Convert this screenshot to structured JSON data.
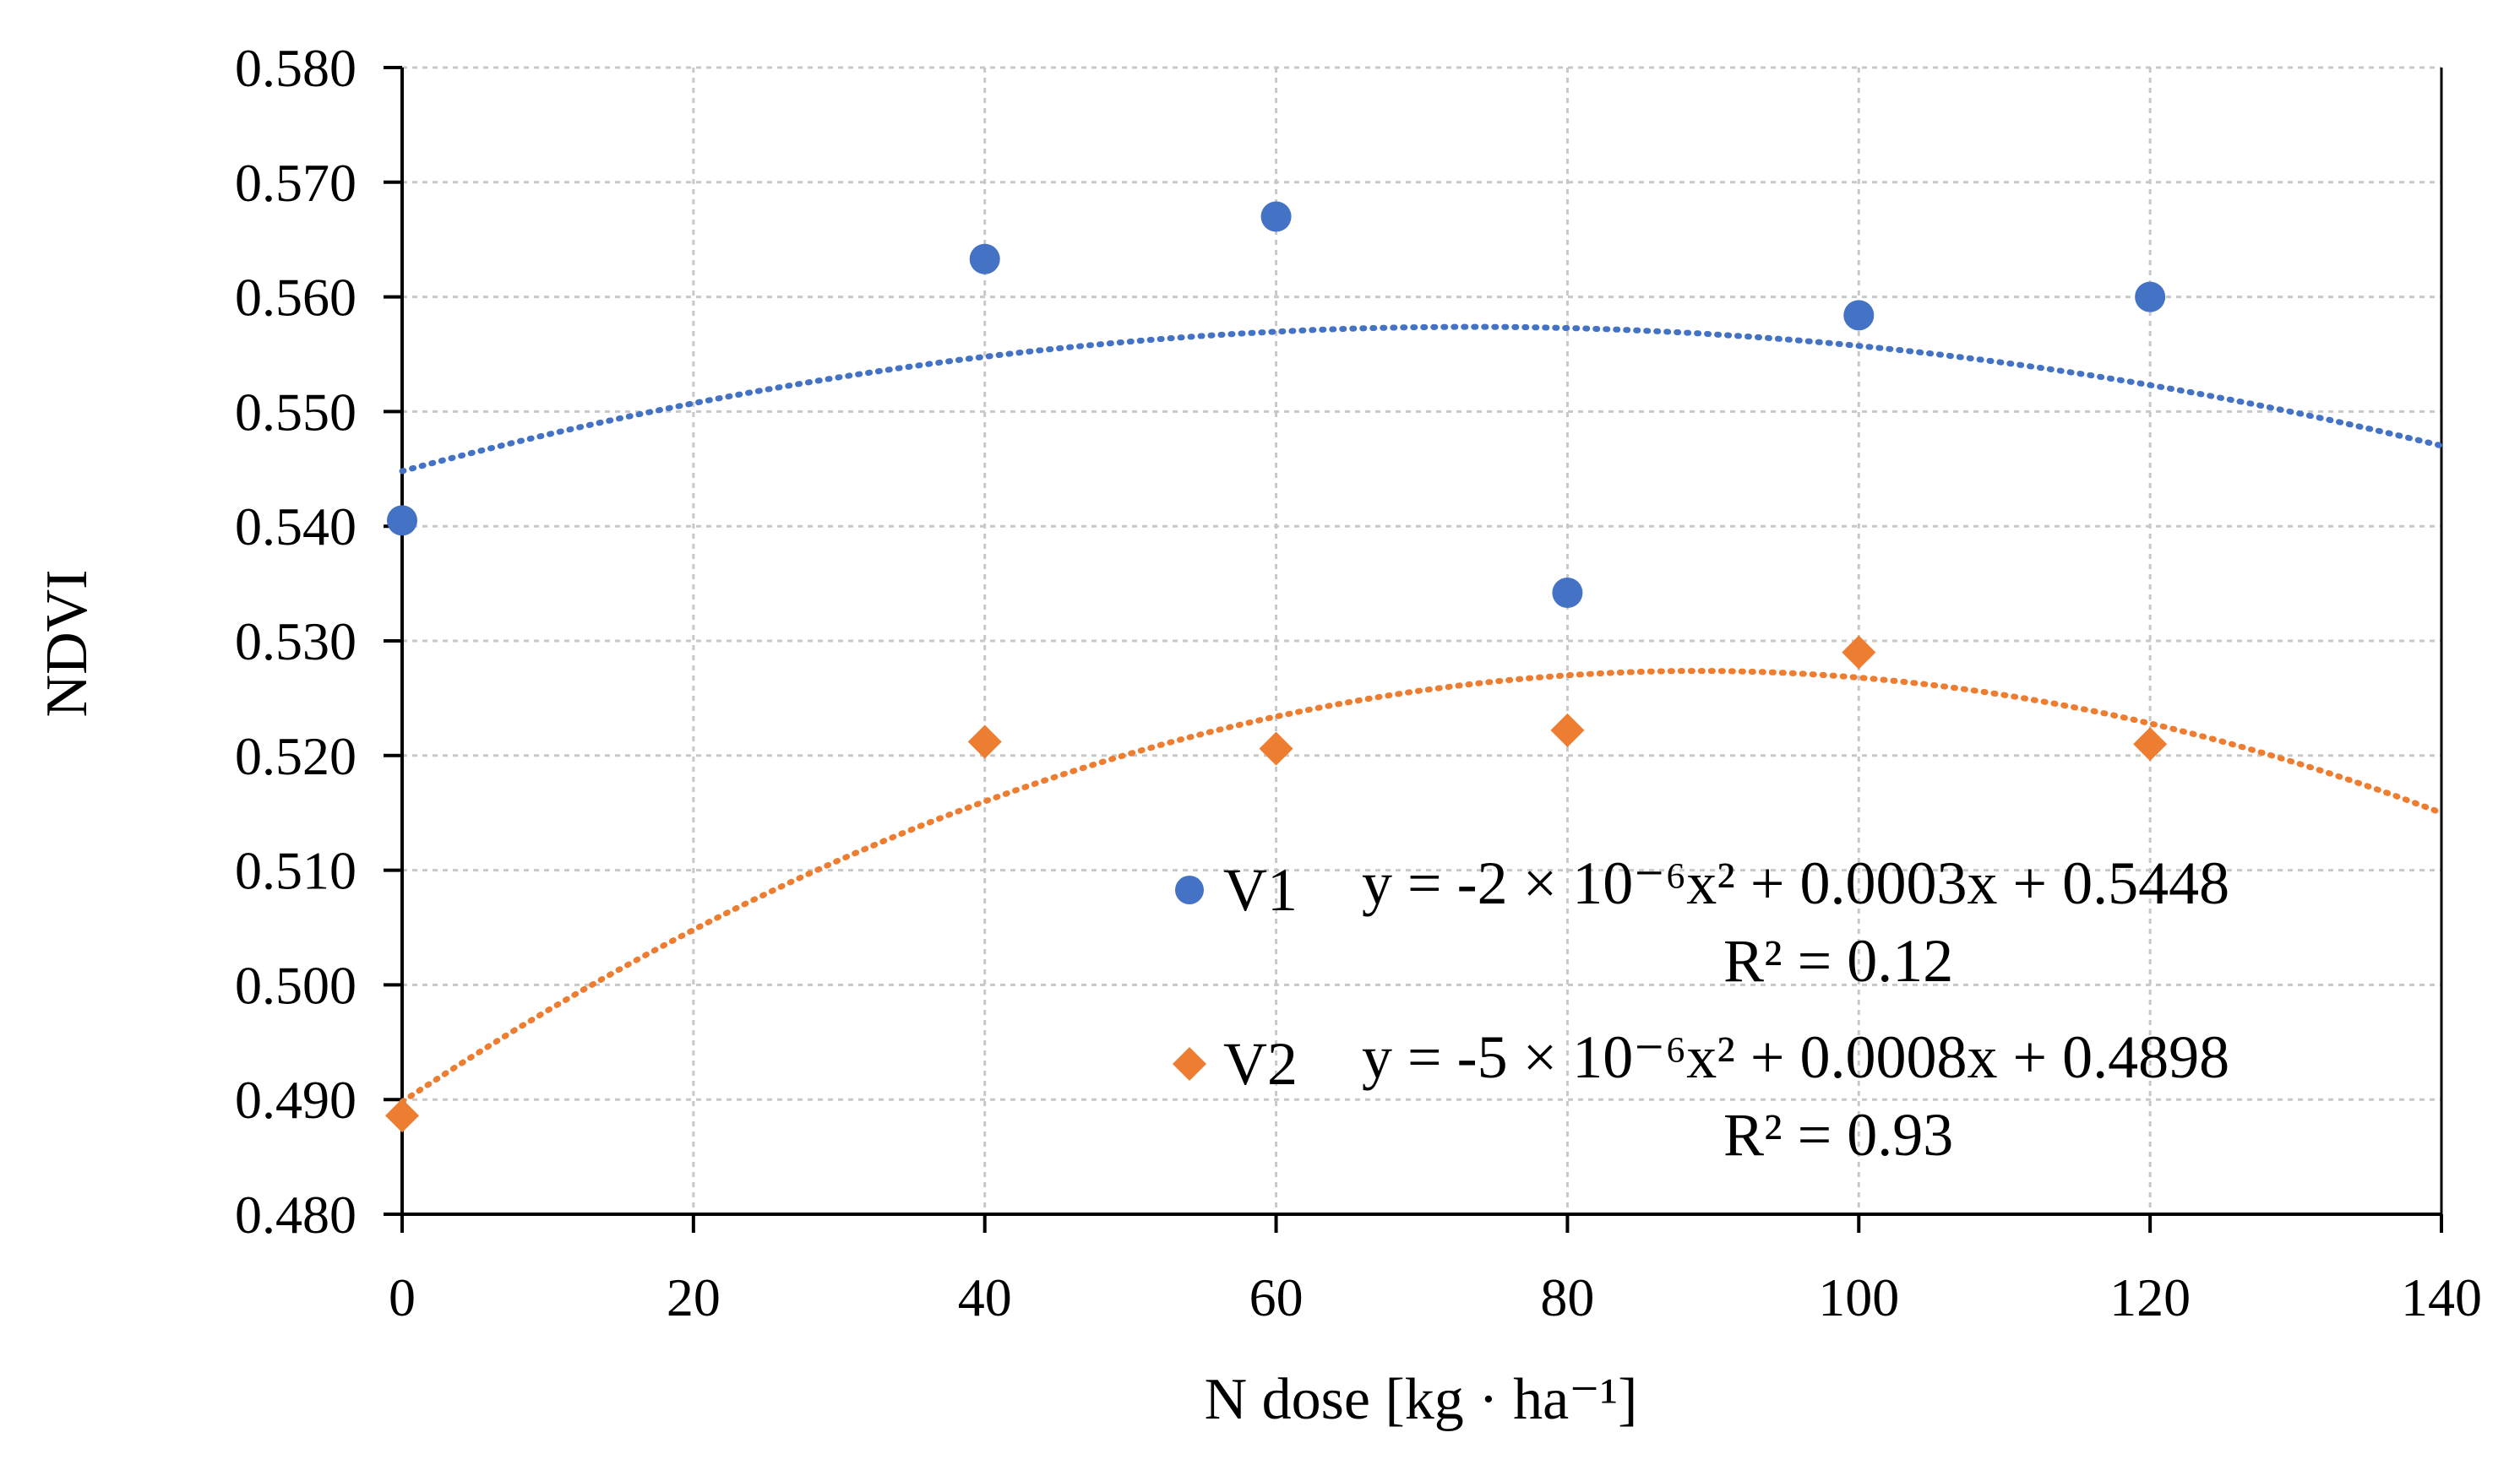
{
  "chart_data": {
    "type": "scatter",
    "title": "",
    "xlabel": "N dose [kg · ha⁻¹]",
    "ylabel": "NDVI",
    "xlim": [
      0,
      140
    ],
    "ylim": [
      0.48,
      0.58
    ],
    "x_ticks": [
      0,
      20,
      40,
      60,
      80,
      100,
      120,
      140
    ],
    "x_tick_labels": [
      "0",
      "20",
      "40",
      "60",
      "80",
      "100",
      "120",
      "140"
    ],
    "y_ticks": [
      0.48,
      0.49,
      0.5,
      0.51,
      0.52,
      0.53,
      0.54,
      0.55,
      0.56,
      0.57,
      0.58
    ],
    "y_tick_labels": [
      "0.480",
      "0.490",
      "0.500",
      "0.510",
      "0.520",
      "0.530",
      "0.540",
      "0.550",
      "0.560",
      "0.570",
      "0.580"
    ],
    "grid": true,
    "series": [
      {
        "name": "V1",
        "marker": "circle",
        "color": "#4472C4",
        "x": [
          0,
          40,
          60,
          80,
          100,
          120
        ],
        "y": [
          0.5405,
          0.5633,
          0.567,
          0.5342,
          0.5584,
          0.56
        ],
        "trendline": {
          "type": "polynomial-2",
          "a": -2.337e-06,
          "b": 0.000343,
          "c": 0.5448,
          "equation": "y = -2 × 10⁻⁶x² + 0.0003x + 0.5448",
          "r2": "R² = 0.12"
        }
      },
      {
        "name": "V2",
        "marker": "diamond",
        "color": "#ED7D31",
        "x": [
          0,
          40,
          60,
          80,
          100,
          120
        ],
        "y": [
          0.4886,
          0.5212,
          0.5206,
          0.5222,
          0.529,
          0.521
        ],
        "trendline": {
          "type": "polynomial-2",
          "a": -4.75e-06,
          "b": 0.000845,
          "c": 0.4898,
          "equation": "y = -5 × 10⁻⁶x² + 0.0008x + 0.4898",
          "r2": "R² = 0.93"
        }
      }
    ],
    "legend_position": "bottom-right"
  }
}
